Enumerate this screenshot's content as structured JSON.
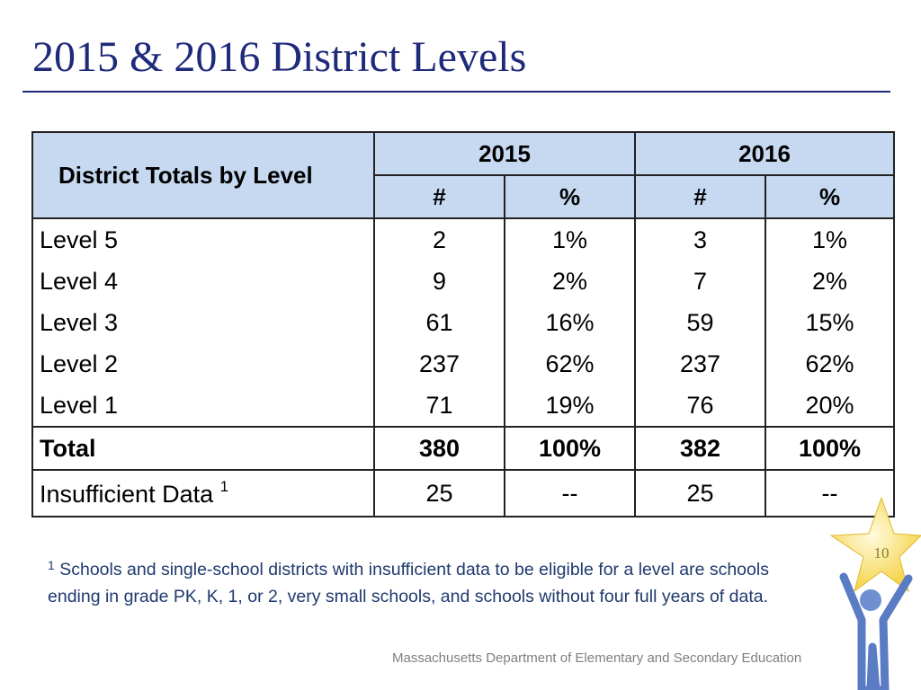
{
  "title": "2015 & 2016 District Levels",
  "table": {
    "header": {
      "row_label": "District Totals by Level",
      "years": [
        "2015",
        "2016"
      ],
      "subcolumns": [
        "#",
        "%",
        "#",
        "%"
      ]
    },
    "rows": [
      [
        "Level 5",
        "2",
        "1%",
        "3",
        "1%"
      ],
      [
        "Level 4",
        "9",
        "2%",
        "7",
        "2%"
      ],
      [
        "Level 3",
        "61",
        "16%",
        "59",
        "15%"
      ],
      [
        "Level 2",
        "237",
        "62%",
        "237",
        "62%"
      ],
      [
        "Level 1",
        "71",
        "19%",
        "76",
        "20%"
      ]
    ],
    "total": [
      "Total",
      "380",
      "100%",
      "382",
      "100%"
    ],
    "insufficient": {
      "label": "Insufficient Data",
      "marker": "1",
      "cells": [
        "25",
        "--",
        "25",
        "--"
      ]
    }
  },
  "footnote": {
    "marker": "1",
    "text": "Schools and single-school districts with insufficient data to be eligible for a level are schools ending in grade PK, K, 1, or 2, very small schools,  and schools without four full years of data."
  },
  "footer": "Massachusetts Department of Elementary and Secondary Education",
  "page_number": "10"
}
